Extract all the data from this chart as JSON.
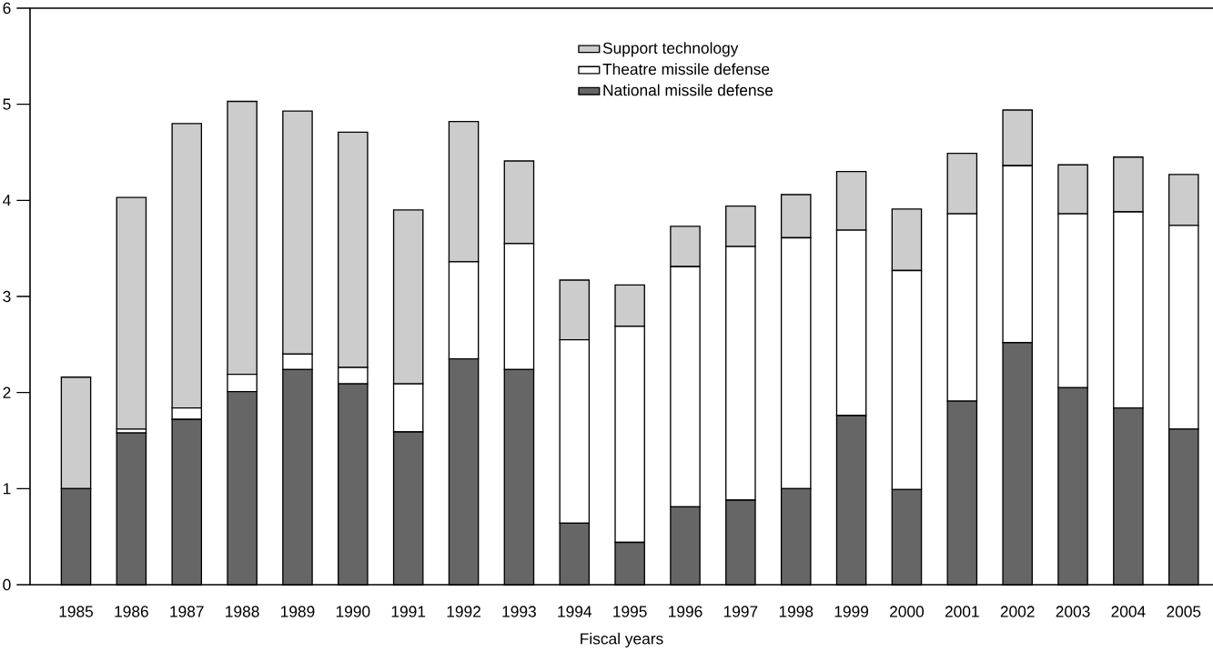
{
  "chart_data": {
    "type": "bar",
    "stacked": true,
    "xlabel": "Fiscal years",
    "categories": [
      "1985",
      "1986",
      "1987",
      "1988",
      "1989",
      "1990",
      "1991",
      "1992",
      "1993",
      "1994",
      "1995",
      "1996",
      "1997",
      "1998",
      "1999",
      "2000",
      "2001",
      "2002",
      "2003",
      "2004",
      "2005"
    ],
    "series": [
      {
        "name": "National missile defense",
        "color": "#666666",
        "values": [
          1.0,
          1.58,
          1.72,
          2.01,
          2.24,
          2.09,
          1.59,
          2.35,
          2.24,
          0.64,
          0.44,
          0.81,
          0.88,
          1.0,
          1.76,
          0.99,
          1.91,
          2.52,
          2.05,
          1.84,
          1.62
        ]
      },
      {
        "name": "Theatre missile defense",
        "color": "#ffffff",
        "values": [
          0,
          0.04,
          0.12,
          0.18,
          0.16,
          0.17,
          0.5,
          1.01,
          1.31,
          1.91,
          2.25,
          2.5,
          2.64,
          2.61,
          1.93,
          2.28,
          1.95,
          1.84,
          1.81,
          2.04,
          2.12
        ]
      },
      {
        "name": "Support technology",
        "color": "#cccccc",
        "values": [
          1.16,
          2.41,
          2.96,
          2.84,
          2.53,
          2.45,
          1.81,
          1.46,
          0.86,
          0.62,
          0.43,
          0.42,
          0.42,
          0.45,
          0.61,
          0.64,
          0.63,
          0.58,
          0.51,
          0.57,
          0.53
        ]
      }
    ],
    "ylim": [
      0,
      6
    ],
    "yticks": [
      0,
      1,
      2,
      3,
      4,
      5,
      6
    ],
    "grid": false,
    "legend": "top"
  }
}
